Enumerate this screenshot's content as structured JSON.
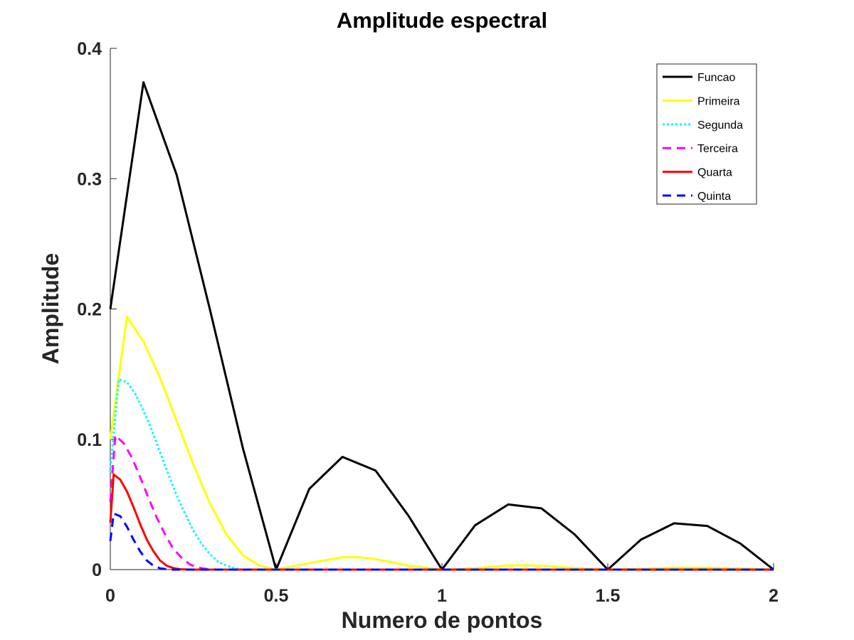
{
  "chart_data": {
    "type": "line",
    "title": "Amplitude espectral",
    "xlabel": "Numero de  pontos",
    "ylabel": "Amplitude",
    "xlim": [
      0,
      2
    ],
    "ylim": [
      0,
      0.4
    ],
    "xticks": [
      0,
      0.5,
      1,
      1.5,
      2
    ],
    "xtick_labels": [
      "0",
      "0.5",
      "1",
      "1.5",
      "2"
    ],
    "yticks": [
      0,
      0.1,
      0.2,
      0.3,
      0.4
    ],
    "ytick_labels": [
      "0",
      "0.1",
      "0.2",
      "0.3",
      "0.4"
    ],
    "grid": false,
    "legend_position": "top-right",
    "series": [
      {
        "name": "Funcao",
        "color": "#000000",
        "dash": "solid",
        "x": [
          0,
          0.1,
          0.2,
          0.3,
          0.4,
          0.5,
          0.6,
          0.7,
          0.8,
          0.9,
          1.0,
          1.1,
          1.2,
          1.3,
          1.4,
          1.5,
          1.6,
          1.7,
          1.8,
          1.9,
          2.0
        ],
        "y": [
          0.2,
          0.374,
          0.303,
          0.2,
          0.093,
          0.0,
          0.062,
          0.0865,
          0.076,
          0.041,
          0.0,
          0.034,
          0.05,
          0.047,
          0.027,
          0.0,
          0.023,
          0.0355,
          0.0335,
          0.02,
          0.0
        ]
      },
      {
        "name": "Primeira",
        "color": "#ffff00",
        "dash": "solid",
        "x": [
          0,
          0.05,
          0.1,
          0.15,
          0.2,
          0.25,
          0.3,
          0.35,
          0.4,
          0.45,
          0.5,
          0.6,
          0.7,
          0.75,
          0.8,
          0.9,
          1.0,
          1.1,
          1.2,
          1.25,
          1.3,
          1.4,
          1.5,
          1.6,
          1.7,
          1.8,
          1.9,
          2.0
        ],
        "y": [
          0.1,
          0.194,
          0.175,
          0.147,
          0.114,
          0.081,
          0.051,
          0.027,
          0.011,
          0.003,
          0.0,
          0.005,
          0.0095,
          0.0095,
          0.008,
          0.003,
          0.0,
          0.001,
          0.0032,
          0.0033,
          0.003,
          0.0012,
          0.0,
          0.0005,
          0.0015,
          0.0015,
          0.0008,
          0.0
        ]
      },
      {
        "name": "Segunda",
        "color": "#00ffff",
        "dash": "dotted",
        "x": [
          0,
          0.025,
          0.05,
          0.075,
          0.1,
          0.125,
          0.15,
          0.175,
          0.2,
          0.225,
          0.25,
          0.275,
          0.3,
          0.325,
          0.35,
          0.375,
          0.4,
          0.5,
          0.75,
          1.0,
          1.5,
          2.0
        ],
        "y": [
          0.075,
          0.146,
          0.144,
          0.135,
          0.122,
          0.107,
          0.09,
          0.073,
          0.057,
          0.043,
          0.03,
          0.02,
          0.012,
          0.006,
          0.003,
          0.001,
          0.0,
          0.0,
          0.0,
          0.0,
          0.0,
          0.0
        ]
      },
      {
        "name": "Terceira",
        "color": "#ff00ff",
        "dash": "dashed",
        "x": [
          0,
          0.015,
          0.04,
          0.065,
          0.09,
          0.115,
          0.14,
          0.165,
          0.19,
          0.215,
          0.24,
          0.265,
          0.29,
          0.32,
          0.5,
          1.0,
          1.5,
          2.0
        ],
        "y": [
          0.052,
          0.103,
          0.097,
          0.086,
          0.071,
          0.055,
          0.04,
          0.027,
          0.016,
          0.009,
          0.004,
          0.0015,
          0.0005,
          0.0,
          0.0,
          0.0,
          0.0,
          0.0
        ]
      },
      {
        "name": "Quarta",
        "color": "#ff0000",
        "dash": "solid",
        "x": [
          0,
          0.01,
          0.03,
          0.05,
          0.07,
          0.09,
          0.11,
          0.13,
          0.15,
          0.17,
          0.19,
          0.21,
          0.24,
          0.5,
          1.0,
          1.5,
          2.0
        ],
        "y": [
          0.036,
          0.073,
          0.069,
          0.06,
          0.048,
          0.035,
          0.023,
          0.014,
          0.007,
          0.003,
          0.0012,
          0.0003,
          0.0,
          0.0,
          0.0,
          0.0,
          0.0
        ]
      },
      {
        "name": "Quinta",
        "color": "#0000ff",
        "dash": "dashed",
        "x": [
          0,
          0.01,
          0.03,
          0.05,
          0.07,
          0.09,
          0.11,
          0.13,
          0.15,
          0.18,
          0.5,
          1.0,
          1.5,
          2.0
        ],
        "y": [
          0.022,
          0.043,
          0.041,
          0.033,
          0.023,
          0.014,
          0.007,
          0.003,
          0.001,
          0.0,
          0.0,
          0.0,
          0.0,
          0.0
        ]
      }
    ]
  }
}
